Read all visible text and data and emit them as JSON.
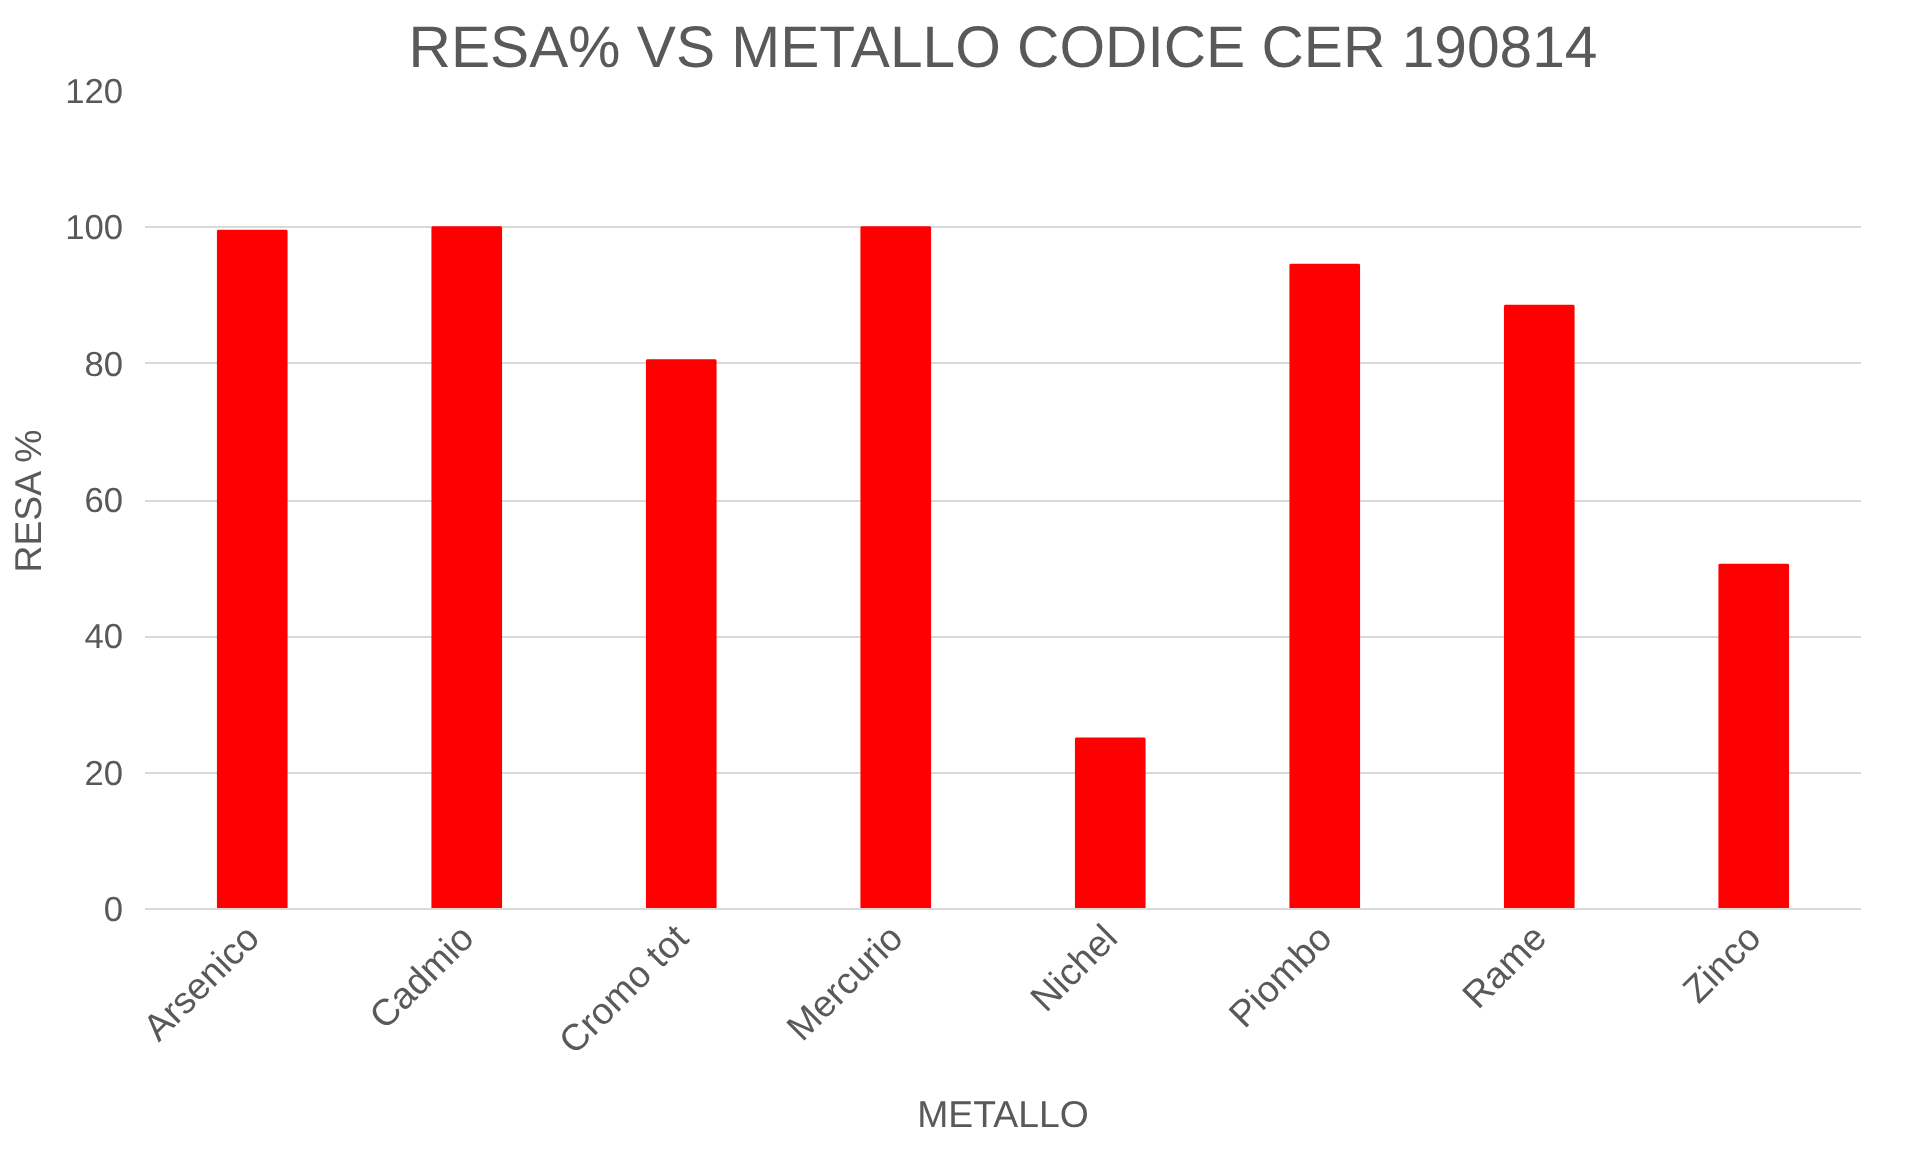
{
  "chart_data": {
    "type": "bar",
    "title": "RESA% VS METALLO CODICE CER 190814",
    "xlabel": "METALLO",
    "ylabel": "RESA %",
    "categories": [
      "Arsenico",
      "Cadmio",
      "Cromo tot",
      "Mercurio",
      "Nichel",
      "Piombo",
      "Rame",
      "Zinco"
    ],
    "values": [
      99.5,
      100,
      80.5,
      100,
      25,
      94.5,
      88.5,
      50.5
    ],
    "color": "#ff0000",
    "ylim": [
      0,
      120
    ],
    "yticks": [
      0,
      20,
      40,
      60,
      80,
      100,
      120
    ],
    "grid": "y"
  }
}
